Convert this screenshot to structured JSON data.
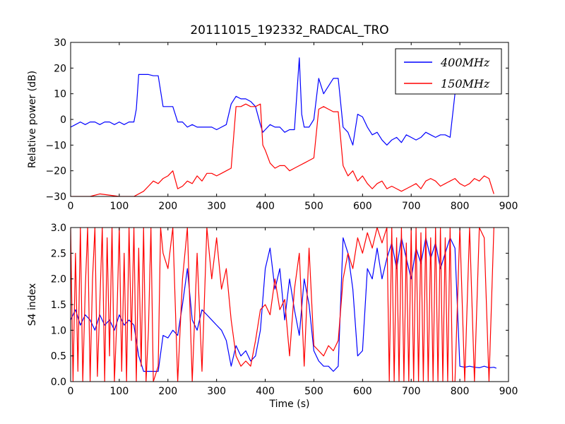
{
  "figure": {
    "title": "20111015_192332_RADCAL_TRO"
  },
  "chart_data": [
    {
      "type": "line",
      "title": "20111015_192332_RADCAL_TRO",
      "xlabel": "",
      "ylabel": "Relative power (dB)",
      "xlim": [
        0,
        900
      ],
      "ylim": [
        -30,
        30
      ],
      "xticks": [
        "0",
        "100",
        "200",
        "300",
        "400",
        "500",
        "600",
        "700",
        "800",
        "900"
      ],
      "yticks": [
        "30",
        "20",
        "10",
        "0",
        "−10",
        "−20",
        "−30"
      ],
      "legend": {
        "placement": "top-right",
        "entries": [
          "400MHz",
          "150MHz"
        ]
      },
      "series": [
        {
          "name": "400MHz",
          "color": "#0000ff",
          "x": [
            0,
            10,
            20,
            30,
            40,
            50,
            60,
            70,
            80,
            90,
            100,
            110,
            120,
            130,
            135,
            140,
            150,
            160,
            170,
            180,
            190,
            200,
            210,
            220,
            230,
            240,
            250,
            260,
            270,
            280,
            290,
            300,
            310,
            320,
            330,
            340,
            350,
            360,
            370,
            380,
            390,
            395,
            400,
            410,
            420,
            430,
            440,
            450,
            460,
            470,
            475,
            480,
            490,
            500,
            510,
            520,
            530,
            540,
            550,
            560,
            570,
            580,
            590,
            600,
            610,
            620,
            630,
            640,
            650,
            660,
            670,
            680,
            690,
            700,
            710,
            720,
            730,
            740,
            750,
            760,
            770,
            780,
            790
          ],
          "y": [
            -3,
            -2,
            -1,
            -2,
            -1,
            -1,
            -2,
            -1,
            -1,
            -2,
            -1,
            -2,
            -1,
            -1,
            4,
            17.5,
            17.5,
            17.5,
            17,
            17,
            5,
            5,
            5,
            -1,
            -1,
            -3,
            -2,
            -3,
            -3,
            -3,
            -3,
            -4,
            -3,
            -2,
            6,
            9,
            8,
            8,
            7,
            5,
            -2,
            -5,
            -4,
            -2,
            -3,
            -3,
            -5,
            -4,
            -4,
            24,
            2,
            -3,
            -3,
            0,
            16,
            10,
            13,
            16,
            16,
            -3,
            -5,
            -10,
            2,
            1,
            -3,
            -6,
            -5,
            -8,
            -10,
            -8,
            -7,
            -9,
            -6,
            -7,
            -8,
            -7,
            -5,
            -6,
            -7,
            -6,
            -6,
            -7,
            10
          ]
        },
        {
          "name": "150MHz",
          "color": "#ff0000",
          "x": [
            0,
            40,
            60,
            100,
            130,
            150,
            160,
            170,
            180,
            190,
            200,
            210,
            220,
            230,
            240,
            250,
            260,
            270,
            280,
            290,
            300,
            310,
            320,
            330,
            340,
            350,
            360,
            370,
            380,
            390,
            395,
            400,
            410,
            420,
            430,
            440,
            450,
            460,
            470,
            480,
            490,
            500,
            510,
            520,
            530,
            540,
            550,
            560,
            570,
            580,
            590,
            600,
            610,
            620,
            630,
            640,
            650,
            660,
            670,
            680,
            690,
            700,
            710,
            720,
            730,
            740,
            750,
            760,
            770,
            780,
            790,
            800,
            810,
            820,
            830,
            840,
            850,
            860,
            870
          ],
          "y": [
            -30,
            -30,
            -29,
            -30,
            -30,
            -28,
            -26,
            -24,
            -25,
            -23,
            -22,
            -20,
            -27,
            -26,
            -24,
            -25,
            -22,
            -24,
            -21,
            -21,
            -22,
            -21,
            -20,
            -19,
            5,
            5,
            6,
            5,
            5,
            6,
            -10,
            -12,
            -17,
            -19,
            -18,
            -18,
            -20,
            -19,
            -18,
            -17,
            -16,
            -15,
            4,
            5,
            4,
            3,
            3,
            -18,
            -22,
            -20,
            -24,
            -22,
            -25,
            -27,
            -25,
            -24,
            -27,
            -26,
            -27,
            -28,
            -27,
            -26,
            -25,
            -27,
            -24,
            -23,
            -24,
            -26,
            -25,
            -24,
            -23,
            -25,
            -26,
            -25,
            -23,
            -24,
            -22,
            -23,
            -29
          ]
        }
      ]
    },
    {
      "type": "line",
      "title": "",
      "xlabel": "Time (s)",
      "ylabel": "S4 index",
      "xlim": [
        0,
        900
      ],
      "ylim": [
        0,
        3
      ],
      "xticks": [
        "0",
        "100",
        "200",
        "300",
        "400",
        "500",
        "600",
        "700",
        "800",
        "900"
      ],
      "yticks": [
        "3.0",
        "2.5",
        "2.0",
        "1.5",
        "1.0",
        "0.5",
        "0.0"
      ],
      "series": [
        {
          "name": "400MHz",
          "color": "#0000ff",
          "x": [
            0,
            10,
            20,
            30,
            40,
            50,
            60,
            70,
            80,
            90,
            100,
            110,
            120,
            130,
            140,
            150,
            160,
            170,
            180,
            190,
            200,
            210,
            220,
            230,
            240,
            250,
            260,
            270,
            280,
            290,
            300,
            310,
            320,
            330,
            340,
            350,
            360,
            370,
            380,
            390,
            400,
            410,
            420,
            430,
            440,
            450,
            460,
            470,
            480,
            490,
            500,
            510,
            520,
            530,
            540,
            550,
            560,
            570,
            580,
            590,
            600,
            610,
            620,
            630,
            640,
            650,
            660,
            670,
            680,
            690,
            700,
            710,
            720,
            730,
            740,
            750,
            760,
            770,
            780,
            790,
            800,
            810,
            820,
            830,
            840,
            850,
            860,
            870,
            875
          ],
          "y": [
            1.2,
            1.4,
            1.1,
            1.3,
            1.2,
            1.0,
            1.3,
            1.1,
            1.2,
            1.0,
            1.3,
            1.1,
            1.2,
            1.1,
            0.5,
            0.2,
            0.2,
            0.2,
            0.2,
            0.9,
            0.85,
            1.0,
            0.9,
            1.5,
            2.2,
            1.2,
            1.0,
            1.4,
            1.3,
            1.2,
            1.1,
            1.0,
            0.8,
            0.3,
            0.7,
            0.5,
            0.6,
            0.4,
            0.5,
            1.0,
            2.2,
            2.6,
            1.8,
            2.2,
            1.2,
            2.0,
            1.4,
            0.9,
            2.0,
            1.5,
            0.6,
            0.4,
            0.3,
            0.3,
            0.2,
            0.3,
            2.8,
            2.5,
            1.8,
            0.5,
            0.6,
            2.2,
            2.0,
            2.6,
            2.0,
            2.4,
            2.7,
            2.2,
            2.8,
            2.4,
            2.0,
            2.6,
            2.3,
            2.8,
            2.4,
            2.7,
            2.2,
            2.5,
            2.8,
            2.6,
            0.3,
            0.28,
            0.3,
            0.28,
            0.27,
            0.3,
            0.27,
            0.28,
            0.26
          ]
        },
        {
          "name": "150MHz",
          "color": "#ff0000",
          "x": [
            0,
            5,
            10,
            15,
            20,
            25,
            30,
            35,
            40,
            45,
            50,
            55,
            60,
            65,
            70,
            75,
            80,
            85,
            90,
            95,
            100,
            105,
            110,
            115,
            120,
            125,
            130,
            135,
            140,
            145,
            150,
            155,
            160,
            165,
            170,
            180,
            185,
            190,
            200,
            210,
            220,
            230,
            240,
            250,
            260,
            270,
            280,
            290,
            300,
            310,
            320,
            330,
            340,
            350,
            360,
            370,
            380,
            390,
            400,
            410,
            420,
            430,
            440,
            450,
            460,
            470,
            480,
            490,
            500,
            510,
            520,
            530,
            540,
            550,
            560,
            570,
            580,
            590,
            600,
            610,
            620,
            630,
            640,
            650,
            655,
            660,
            665,
            670,
            675,
            680,
            685,
            690,
            695,
            700,
            705,
            710,
            715,
            720,
            725,
            730,
            735,
            740,
            745,
            750,
            755,
            760,
            765,
            770,
            775,
            780,
            785,
            790,
            800,
            810,
            820,
            830,
            840,
            850,
            860,
            870
          ],
          "y": [
            3.0,
            0.0,
            2.5,
            0.2,
            3.0,
            0.0,
            1.8,
            3.0,
            0.0,
            2.0,
            3.0,
            0.1,
            1.5,
            3.0,
            0.0,
            2.8,
            0.5,
            3.0,
            0.0,
            1.2,
            3.0,
            0.2,
            2.5,
            0.0,
            3.0,
            0.8,
            3.0,
            0.0,
            2.6,
            0.3,
            3.0,
            0.0,
            1.0,
            3.0,
            0.0,
            0.3,
            3.0,
            2.5,
            2.2,
            3.0,
            0.0,
            2.0,
            3.0,
            0.0,
            2.5,
            0.2,
            3.0,
            2.0,
            2.8,
            1.8,
            2.2,
            1.2,
            0.5,
            0.3,
            0.4,
            0.3,
            0.8,
            1.4,
            1.5,
            1.3,
            2.0,
            1.4,
            1.6,
            0.5,
            1.8,
            2.5,
            0.3,
            2.6,
            0.7,
            0.6,
            0.5,
            0.7,
            0.6,
            0.8,
            2.0,
            2.5,
            2.2,
            2.8,
            2.5,
            2.9,
            2.6,
            3.0,
            2.7,
            3.0,
            0.0,
            3.0,
            0.0,
            2.8,
            0.0,
            3.0,
            0.0,
            2.7,
            0.0,
            3.0,
            0.0,
            3.0,
            0.0,
            2.9,
            0.0,
            3.0,
            0.0,
            2.8,
            0.0,
            3.0,
            0.0,
            3.0,
            0.0,
            2.8,
            0.0,
            3.0,
            0.0,
            0.0,
            3.0,
            0.0,
            3.0,
            0.0,
            3.0,
            2.8,
            0.0,
            3.0
          ]
        }
      ]
    }
  ]
}
